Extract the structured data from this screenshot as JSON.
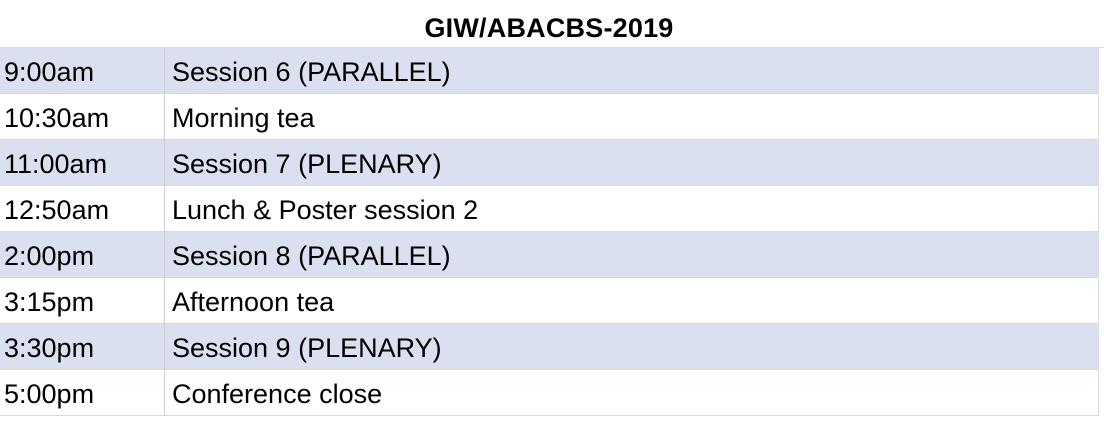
{
  "sheet": {
    "title": "GIW/ABACBS-2019",
    "row_shade_color": "#dbe0f0",
    "schedule": [
      {
        "time": "9:00am",
        "event": "Session 6 (PARALLEL)",
        "shaded": true
      },
      {
        "time": "10:30am",
        "event": "Morning tea",
        "shaded": false
      },
      {
        "time": "11:00am",
        "event": "Session 7 (PLENARY)",
        "shaded": true
      },
      {
        "time": "12:50am",
        "event": "Lunch & Poster session 2",
        "shaded": false
      },
      {
        "time": "2:00pm",
        "event": "Session 8 (PARALLEL)",
        "shaded": true
      },
      {
        "time": "3:15pm",
        "event": "Afternoon tea",
        "shaded": false
      },
      {
        "time": "3:30pm",
        "event": "Session 9 (PLENARY)",
        "shaded": true
      },
      {
        "time": "5:00pm",
        "event": "Conference close",
        "shaded": false
      }
    ]
  }
}
